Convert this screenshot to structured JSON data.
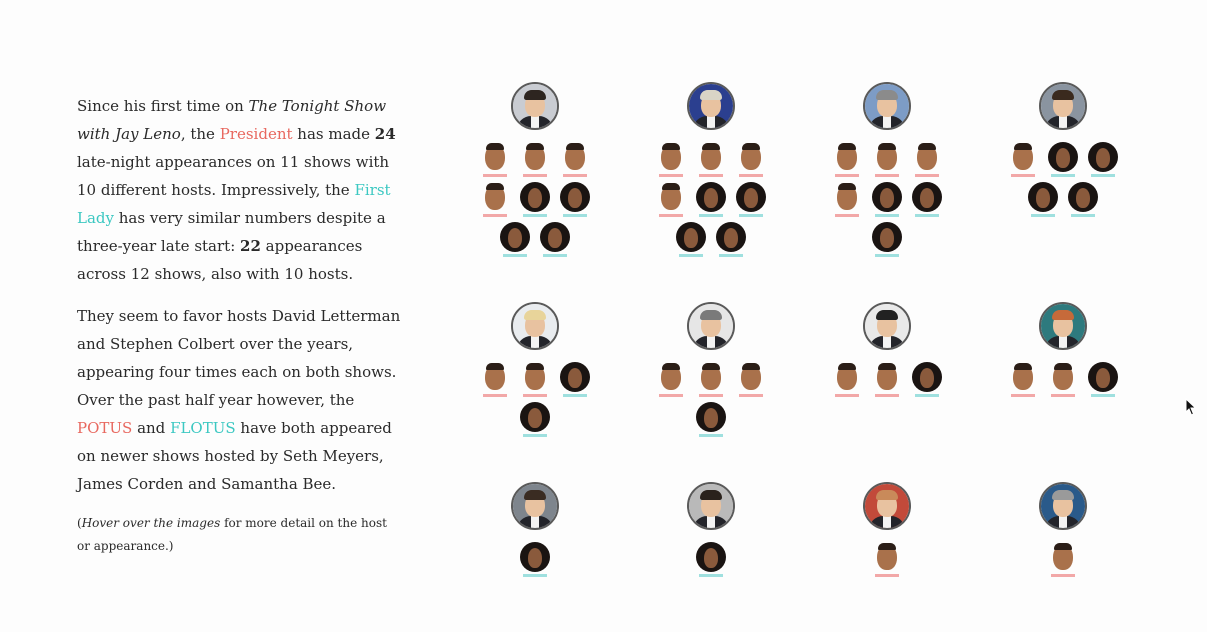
{
  "text": {
    "p1": [
      {
        "t": "Since his first time on "
      },
      {
        "t": "The Tonight Show with Jay Leno",
        "style": "i"
      },
      {
        "t": ", the "
      },
      {
        "t": "President",
        "style": "pres"
      },
      {
        "t": " has made "
      },
      {
        "t": "24",
        "style": "b"
      },
      {
        "t": " late-night appearances on 11 shows with 10 different hosts. Impressively, the "
      },
      {
        "t": "First Lady",
        "style": "lady"
      },
      {
        "t": " has very similar numbers despite a three-year late start: "
      },
      {
        "t": "22",
        "style": "b"
      },
      {
        "t": " appearances across 12 shows, also with 10 hosts."
      }
    ],
    "p2": [
      {
        "t": "They seem to favor hosts David Letterman and Stephen Colbert over the years, appearing four times each on both shows. Over the past half year however, the "
      },
      {
        "t": "POTUS",
        "style": "pres"
      },
      {
        "t": " and "
      },
      {
        "t": "FLOTUS",
        "style": "lady"
      },
      {
        "t": " have both appeared on newer shows hosted by Seth Meyers, James Corden and Samantha Bee."
      }
    ],
    "note": [
      {
        "t": "("
      },
      {
        "t": "Hover over the images",
        "style": "i"
      },
      {
        "t": " for more detail on the host or appearance.)"
      }
    ]
  },
  "colors": {
    "president": "#e8685f",
    "first_lady": "#3cc8c2"
  },
  "hosts": [
    {
      "id": "colbert",
      "bg": "#c9ccd2",
      "hair": "#2d2520",
      "apps": [
        "obama",
        "obama",
        "obama",
        "obama",
        "michelle",
        "michelle",
        "michelle",
        "michelle"
      ]
    },
    {
      "id": "letterman",
      "bg": "#2b3f8f",
      "hair": "#d9d4c6",
      "apps": [
        "obama",
        "obama",
        "obama",
        "obama",
        "michelle",
        "michelle",
        "michelle",
        "michelle"
      ]
    },
    {
      "id": "leno",
      "bg": "#7d9cc6",
      "hair": "#8b8b8b",
      "apps": [
        "obama",
        "obama",
        "obama",
        "obama",
        "michelle",
        "michelle",
        "michelle"
      ]
    },
    {
      "id": "fallon",
      "bg": "#8a94a0",
      "hair": "#3a2a1e",
      "apps": [
        "obama",
        "michelle",
        "michelle",
        "michelle",
        "michelle"
      ]
    },
    {
      "id": "degeneres",
      "bg": "#e9ecef",
      "hair": "#e8d49a",
      "apps": [
        "obama",
        "obama",
        "michelle",
        "michelle"
      ]
    },
    {
      "id": "stewart",
      "bg": "#e6e6e6",
      "hair": "#7a7a7a",
      "apps": [
        "obama",
        "obama",
        "obama",
        "michelle"
      ]
    },
    {
      "id": "kimmel",
      "bg": "#e9e9e9",
      "hair": "#222222",
      "apps": [
        "obama",
        "obama",
        "michelle"
      ]
    },
    {
      "id": "obrien",
      "bg": "#2e7a7e",
      "hair": "#c66a3a",
      "apps": [
        "obama",
        "obama",
        "michelle"
      ]
    },
    {
      "id": "meyers",
      "bg": "#7e858d",
      "hair": "#3a2c22",
      "apps": [
        "michelle"
      ]
    },
    {
      "id": "corden",
      "bg": "#b9b9b9",
      "hair": "#2a221c",
      "apps": [
        "michelle"
      ]
    },
    {
      "id": "bee",
      "bg": "#c24a3a",
      "hair": "#c98a5a",
      "apps": [
        "obama"
      ]
    },
    {
      "id": "maher",
      "bg": "#2a5a8a",
      "hair": "#9a9a9a",
      "apps": [
        "obama"
      ]
    }
  ]
}
